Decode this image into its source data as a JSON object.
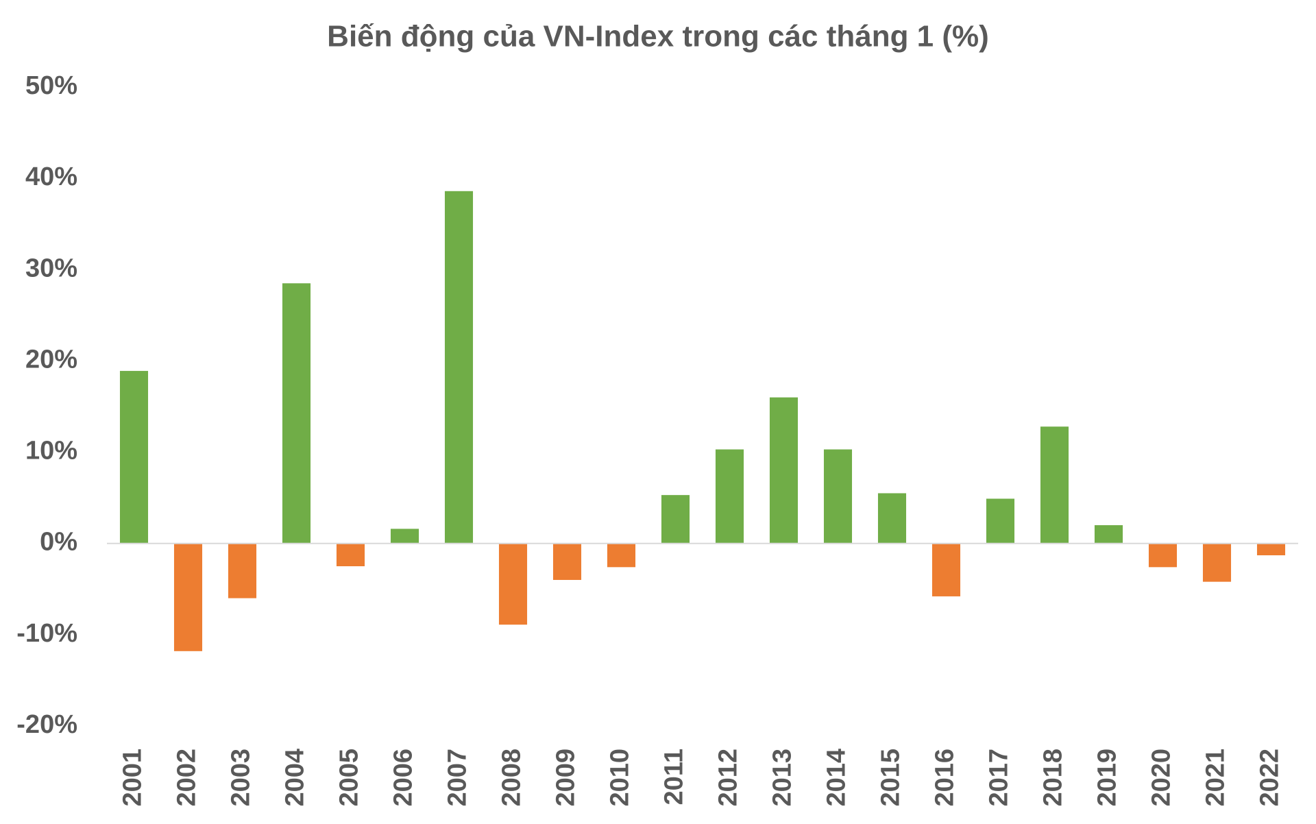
{
  "chart_data": {
    "type": "bar",
    "title": "Biến động của VN-Index trong các tháng 1 (%)",
    "categories": [
      "2001",
      "2002",
      "2003",
      "2004",
      "2005",
      "2006",
      "2007",
      "2008",
      "2009",
      "2010",
      "2011",
      "2012",
      "2013",
      "2014",
      "2015",
      "2016",
      "2017",
      "2018",
      "2019",
      "2020",
      "2021",
      "2022"
    ],
    "values": [
      18.9,
      -11.8,
      -6.0,
      28.5,
      -2.5,
      1.6,
      38.6,
      -8.9,
      -4.0,
      -2.6,
      5.3,
      10.3,
      16.0,
      10.3,
      5.5,
      -5.8,
      4.9,
      12.8,
      2.0,
      -2.6,
      -4.2,
      -1.3
    ],
    "color_positive": "#70ad47",
    "color_negative": "#ed7d31",
    "ylim": [
      -20,
      50
    ],
    "yticks": [
      {
        "value": -20,
        "label": "-20%"
      },
      {
        "value": -10,
        "label": "-10%"
      },
      {
        "value": 0,
        "label": "0%"
      },
      {
        "value": 10,
        "label": "10%"
      },
      {
        "value": 20,
        "label": "20%"
      },
      {
        "value": 30,
        "label": "30%"
      },
      {
        "value": 40,
        "label": "40%"
      },
      {
        "value": 50,
        "label": "50%"
      }
    ],
    "grid": false
  }
}
